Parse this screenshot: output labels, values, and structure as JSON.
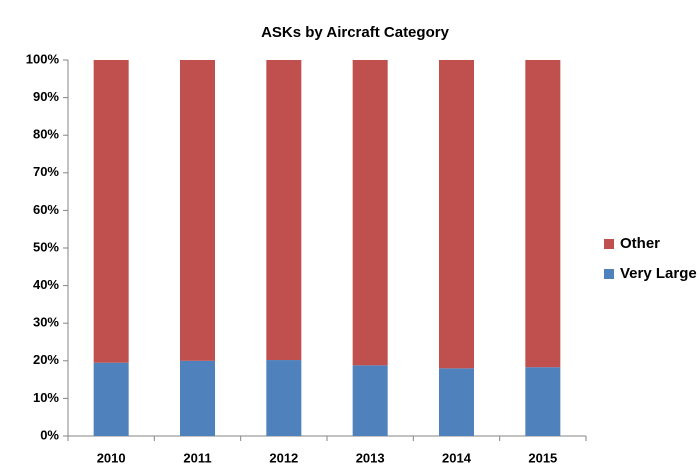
{
  "chart_data": {
    "type": "stacked_bar",
    "title": "ASKs by Aircraft Category",
    "categories": [
      "2010",
      "2011",
      "2012",
      "2013",
      "2014",
      "2015"
    ],
    "series": [
      {
        "name": "Very Large",
        "color": "#4f81bd",
        "values": [
          19.5,
          20,
          20.2,
          18.8,
          18,
          18.3
        ]
      },
      {
        "name": "Other",
        "color": "#c0504d",
        "values": [
          80.5,
          80,
          79.8,
          81.2,
          82,
          81.7
        ]
      }
    ],
    "ylim": [
      0,
      100
    ],
    "yticks": [
      {
        "value": 0,
        "label": "0%"
      },
      {
        "value": 10,
        "label": "10%"
      },
      {
        "value": 20,
        "label": "20%"
      },
      {
        "value": 30,
        "label": "30%"
      },
      {
        "value": 40,
        "label": "40%"
      },
      {
        "value": 50,
        "label": "50%"
      },
      {
        "value": 60,
        "label": "60%"
      },
      {
        "value": 70,
        "label": "70%"
      },
      {
        "value": 80,
        "label": "80%"
      },
      {
        "value": 90,
        "label": "90%"
      },
      {
        "value": 100,
        "label": "100%"
      }
    ],
    "legend": "right",
    "grid": false
  }
}
